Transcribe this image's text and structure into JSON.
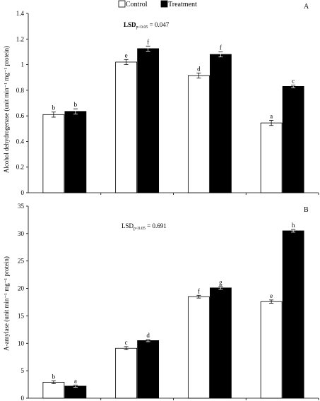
{
  "legend": {
    "items": [
      {
        "label": "Control",
        "fill": "#ffffff"
      },
      {
        "label": "Treatment",
        "fill": "#000000"
      }
    ]
  },
  "chart_data": [
    {
      "type": "bar",
      "panel_label": "A",
      "lsd_text": "LSD",
      "lsd_sub": "p<0.05",
      "lsd_value": " = 0.047",
      "ylabel": "Alcohol dehydrogenase (unit min⁻¹ mg⁻¹ protein)",
      "ylim": [
        0,
        1.4
      ],
      "yticks": [
        "0",
        "0.2",
        "0.4",
        "0.6",
        "0.8",
        "1",
        "1.2",
        "1.4"
      ],
      "categories": [
        "",
        "",
        "",
        ""
      ],
      "series": [
        {
          "name": "Control",
          "values": [
            0.61,
            1.02,
            0.915,
            0.545
          ],
          "errors": [
            0.02,
            0.02,
            0.02,
            0.02
          ],
          "letters": [
            "b",
            "e",
            "d",
            "a"
          ]
        },
        {
          "name": "Treatment",
          "values": [
            0.635,
            1.125,
            1.08,
            0.83
          ],
          "errors": [
            0.02,
            0.02,
            0.02,
            0.01
          ],
          "letters": [
            "b",
            "f",
            "f",
            "c"
          ]
        }
      ]
    },
    {
      "type": "bar",
      "panel_label": "B",
      "lsd_text": "LSD",
      "lsd_sub": "p<0.05",
      "lsd_value": " = 0.691",
      "ylabel": "A-amylase (unit min⁻¹ mg⁻¹ protein)",
      "ylim": [
        0,
        35
      ],
      "yticks": [
        "0",
        "5",
        "10",
        "15",
        "20",
        "25",
        "30",
        "35"
      ],
      "categories": [
        "",
        "",
        "",
        ""
      ],
      "series": [
        {
          "name": "Control",
          "values": [
            2.9,
            9.1,
            18.5,
            17.6
          ],
          "errors": [
            0.25,
            0.3,
            0.25,
            0.3
          ],
          "letters": [
            "b",
            "c",
            "f",
            "e"
          ]
        },
        {
          "name": "Treatment",
          "values": [
            2.2,
            10.5,
            20.1,
            30.5
          ],
          "errors": [
            0.2,
            0.2,
            0.25,
            0.25
          ],
          "letters": [
            "a",
            "d",
            "g",
            "h"
          ]
        }
      ]
    }
  ]
}
